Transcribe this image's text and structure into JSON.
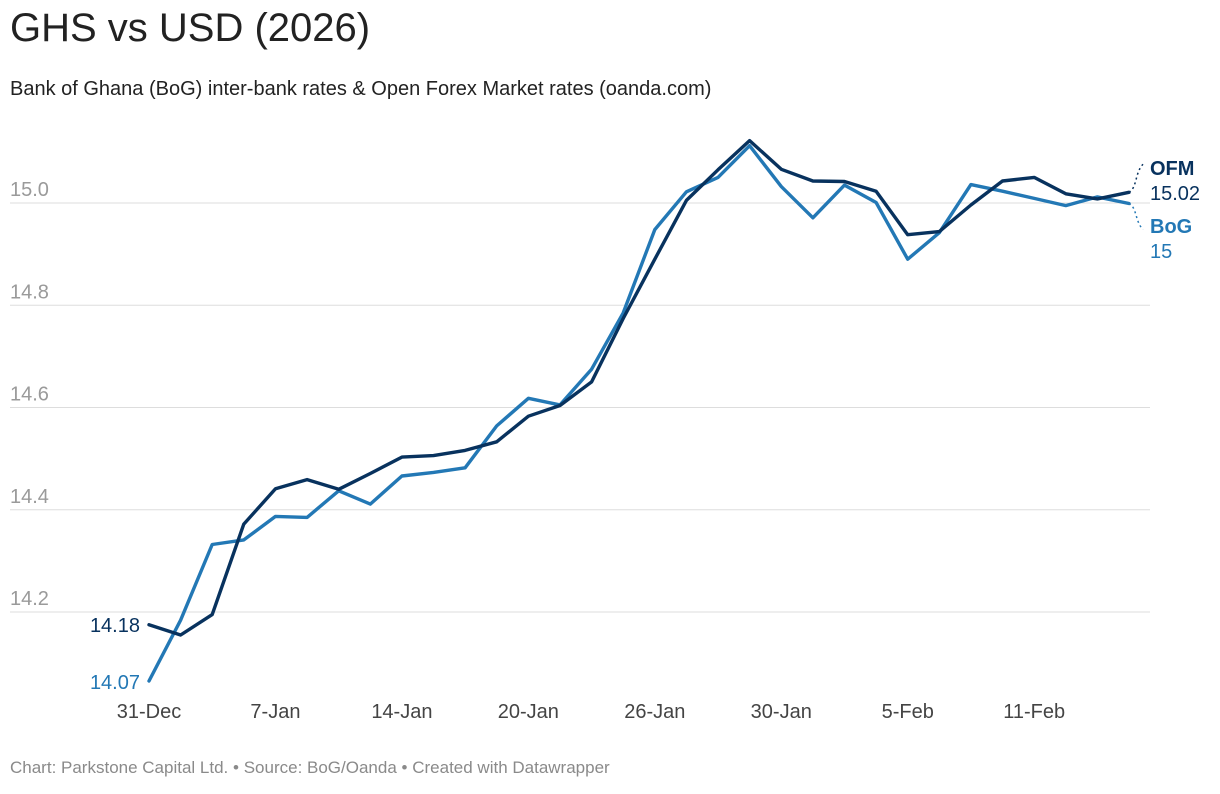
{
  "header": {
    "title": "GHS vs USD (2026)",
    "subtitle": "Bank of Ghana (BoG) inter-bank rates & Open Forex Market rates (oanda.com)"
  },
  "footer": {
    "chart_credit": "Chart: Parkstone Capital Ltd.",
    "source": "Source: BoG/Oanda",
    "tool": "Created with Datawrapper",
    "separator": "•"
  },
  "colors": {
    "ofm": "#08325e",
    "bog": "#2378b5",
    "grid": "#dddddd",
    "axis_text": "#9a9a9a",
    "x_axis_text": "#444444"
  },
  "chart_data": {
    "type": "line",
    "title": "GHS vs USD (2026)",
    "xlabel": "",
    "ylabel": "",
    "ylim": [
      14.0,
      15.15
    ],
    "yticks": [
      "14.2",
      "14.4",
      "14.6",
      "14.8",
      "15.0"
    ],
    "grid": true,
    "x_tick_labels": [
      {
        "index": 0,
        "label": "31-Dec"
      },
      {
        "index": 4,
        "label": "7-Jan"
      },
      {
        "index": 8,
        "label": "14-Jan"
      },
      {
        "index": 12,
        "label": "20-Jan"
      },
      {
        "index": 16,
        "label": "26-Jan"
      },
      {
        "index": 20,
        "label": "30-Jan"
      },
      {
        "index": 24,
        "label": "5-Feb"
      },
      {
        "index": 28,
        "label": "11-Feb"
      }
    ],
    "series": [
      {
        "name": "OFM",
        "start_label": "14.18",
        "end_label": "15.02",
        "values": [
          14.175,
          14.155,
          14.195,
          14.372,
          14.441,
          14.459,
          14.44,
          14.471,
          14.503,
          14.506,
          14.516,
          14.533,
          14.583,
          14.604,
          14.65,
          14.774,
          14.89,
          15.005,
          15.065,
          15.122,
          15.066,
          15.043,
          15.042,
          15.023,
          14.938,
          14.944,
          14.996,
          15.043,
          15.05,
          15.018,
          15.008,
          15.021
        ]
      },
      {
        "name": "BoG",
        "start_label": "14.07",
        "end_label": "15",
        "values": [
          14.065,
          14.184,
          14.332,
          14.341,
          14.387,
          14.385,
          14.437,
          14.411,
          14.466,
          14.473,
          14.482,
          14.564,
          14.618,
          14.605,
          14.675,
          14.785,
          14.948,
          15.022,
          15.05,
          15.112,
          15.032,
          14.971,
          15.035,
          15.001,
          14.89,
          14.942,
          15.036,
          15.023,
          15.009,
          14.995,
          15.012,
          14.999
        ]
      }
    ]
  }
}
